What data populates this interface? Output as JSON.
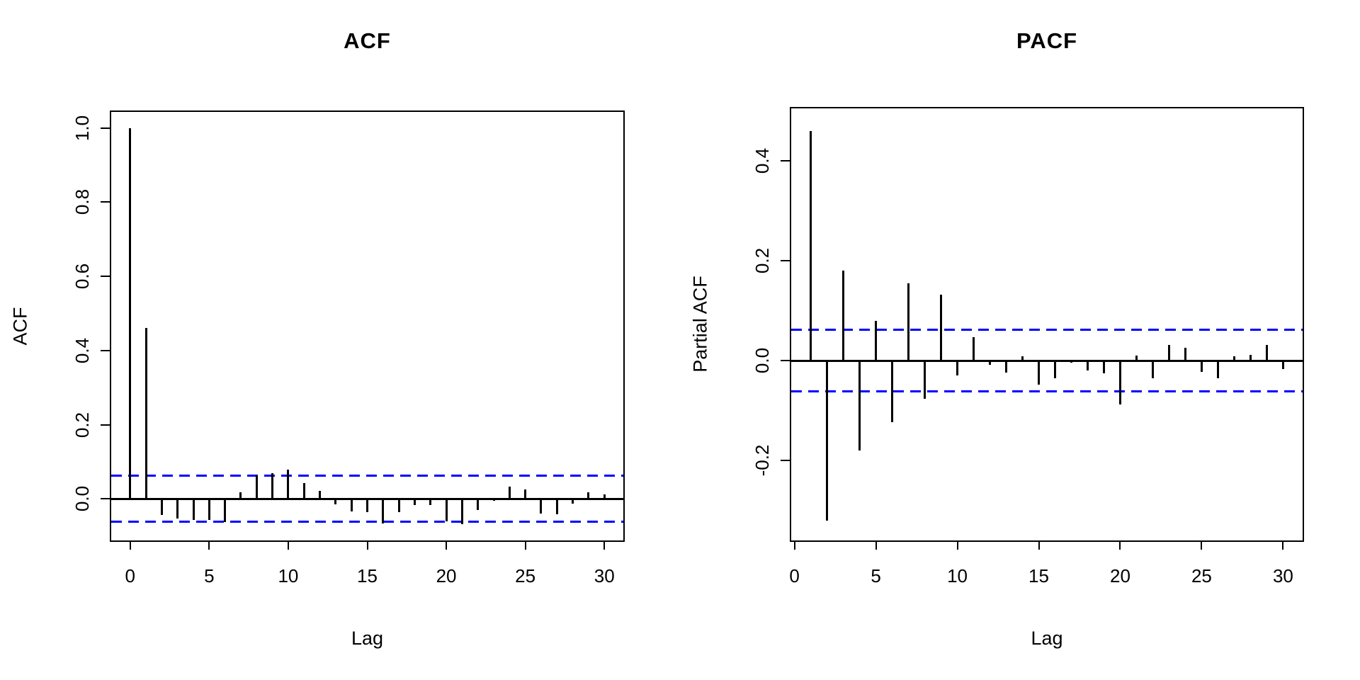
{
  "figure": {
    "background_color": "#FFFFFF",
    "line_color": "#000000",
    "conf_band_color": "#0000FF"
  },
  "chart_data": [
    {
      "type": "bar",
      "style": "correlogram",
      "title": "ACF",
      "xlabel": "Lag",
      "ylabel": "ACF",
      "x": [
        0,
        1,
        2,
        3,
        4,
        5,
        6,
        7,
        8,
        9,
        10,
        11,
        12,
        13,
        14,
        15,
        16,
        17,
        18,
        19,
        20,
        21,
        22,
        23,
        24,
        25,
        26,
        27,
        28,
        29,
        30
      ],
      "values": [
        1.0,
        0.46,
        -0.044,
        -0.053,
        -0.057,
        -0.057,
        -0.063,
        0.017,
        0.063,
        0.069,
        0.078,
        0.042,
        0.021,
        -0.015,
        -0.034,
        -0.036,
        -0.067,
        -0.036,
        -0.017,
        -0.017,
        -0.061,
        -0.069,
        -0.029,
        -0.005,
        0.033,
        0.025,
        -0.04,
        -0.041,
        -0.013,
        0.018,
        0.012
      ],
      "conf_band": 0.062,
      "conf_band_style": "dashed",
      "xlim": [
        -1.2,
        31.2
      ],
      "ylim": [
        -0.112,
        1.043
      ],
      "xticks": [
        0,
        5,
        10,
        15,
        20,
        25,
        30
      ],
      "xtick_labels": [
        "0",
        "5",
        "10",
        "15",
        "20",
        "25",
        "30"
      ],
      "yticks": [
        0.0,
        0.2,
        0.4,
        0.6,
        0.8,
        1.0
      ],
      "ytick_labels": [
        "0.0",
        "0.2",
        "0.4",
        "0.6",
        "0.8",
        "1.0"
      ],
      "grid": false,
      "legend": null
    },
    {
      "type": "bar",
      "style": "correlogram",
      "title": "PACF",
      "xlabel": "Lag",
      "ylabel": "Partial ACF",
      "x": [
        1,
        2,
        3,
        4,
        5,
        6,
        7,
        8,
        9,
        10,
        11,
        12,
        13,
        14,
        15,
        16,
        17,
        18,
        19,
        20,
        21,
        22,
        23,
        24,
        25,
        26,
        27,
        28,
        29,
        30
      ],
      "values": [
        0.46,
        -0.32,
        0.18,
        -0.18,
        0.08,
        -0.123,
        0.155,
        -0.077,
        0.132,
        -0.03,
        0.047,
        -0.008,
        -0.024,
        0.008,
        -0.048,
        -0.035,
        -0.004,
        -0.02,
        -0.025,
        -0.088,
        0.01,
        -0.035,
        0.031,
        0.026,
        -0.023,
        -0.035,
        0.009,
        0.012,
        0.031,
        -0.017
      ],
      "conf_band": 0.062,
      "conf_band_style": "dashed",
      "xlim": [
        -0.2,
        31.2
      ],
      "ylim": [
        -0.36,
        0.505
      ],
      "xticks": [
        0,
        5,
        10,
        15,
        20,
        25,
        30
      ],
      "xtick_labels": [
        "0",
        "5",
        "10",
        "15",
        "20",
        "25",
        "30"
      ],
      "yticks": [
        -0.2,
        0.0,
        0.2,
        0.4
      ],
      "ytick_labels": [
        "-0.2",
        "0.0",
        "0.2",
        "0.4"
      ],
      "grid": false,
      "legend": null
    }
  ]
}
